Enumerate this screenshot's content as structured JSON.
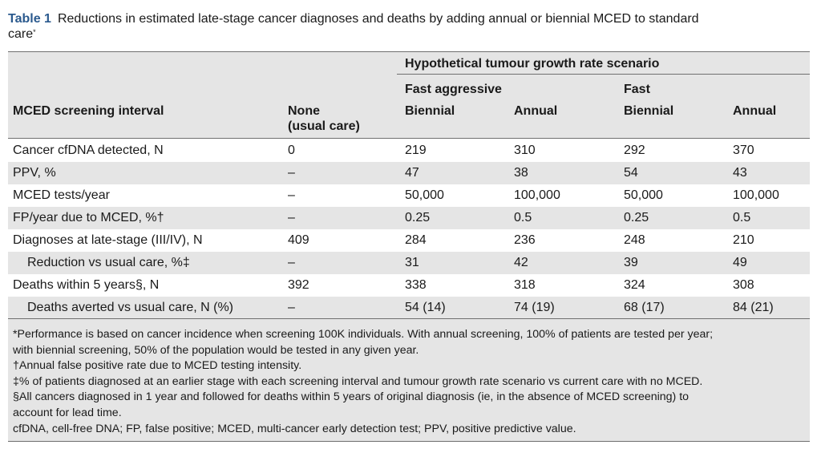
{
  "caption": {
    "label": "Table 1",
    "title": "Reductions in estimated late-stage cancer diagnoses and deaths by adding annual or biennial MCED to standard",
    "title_cont": "care",
    "marker": "*"
  },
  "header": {
    "scenario": "Hypothetical tumour growth rate scenario",
    "group1": "Fast aggressive",
    "group2": "Fast",
    "col_label": "MCED screening interval",
    "none_line1": "None",
    "none_line2": "(usual care)",
    "c1": "Biennial",
    "c2": "Annual",
    "c3": "Biennial",
    "c4": "Annual"
  },
  "rows": [
    {
      "label": "Cancer cfDNA detected, N",
      "none": "0",
      "c1": "219",
      "c2": "310",
      "c3": "292",
      "c4": "370"
    },
    {
      "label": "PPV, %",
      "none": "–",
      "c1": "47",
      "c2": "38",
      "c3": "54",
      "c4": "43"
    },
    {
      "label": "MCED tests/year",
      "none": "–",
      "c1": "50,000",
      "c2": "100,000",
      "c3": "50,000",
      "c4": "100,000"
    },
    {
      "label": "FP/year due to MCED, %†",
      "none": "–",
      "c1": "0.25",
      "c2": "0.5",
      "c3": "0.25",
      "c4": "0.5"
    },
    {
      "label": "Diagnoses at late-stage (III/IV), N",
      "none": "409",
      "c1": "284",
      "c2": "236",
      "c3": "248",
      "c4": "210"
    },
    {
      "label": "Reduction vs usual care, %‡",
      "none": "–",
      "c1": "31",
      "c2": "42",
      "c3": "39",
      "c4": "49"
    },
    {
      "label": "Deaths within 5 years§, N",
      "none": "392",
      "c1": "338",
      "c2": "318",
      "c3": "324",
      "c4": "308"
    },
    {
      "label": "Deaths averted vs usual care, N (%)",
      "none": "–",
      "c1": "54 (14)",
      "c2": "74 (19)",
      "c3": "68 (17)",
      "c4": "84 (21)"
    }
  ],
  "footnotes": [
    "*Performance is based on cancer incidence when screening 100K individuals. With annual screening, 100% of patients are tested per year;",
    "with biennial screening, 50% of the population would be tested in any given year.",
    "†Annual false positive rate due to MCED testing intensity.",
    "‡% of patients diagnosed at an earlier stage with each screening interval and tumour growth rate scenario vs current care with no MCED.",
    "§All cancers diagnosed in 1 year and followed for deaths within 5 years of original diagnosis (ie, in the absence of MCED screening) to",
    "account for lead time.",
    "cfDNA, cell-free DNA; FP, false positive; MCED, multi-cancer early detection test; PPV, positive predictive value."
  ]
}
